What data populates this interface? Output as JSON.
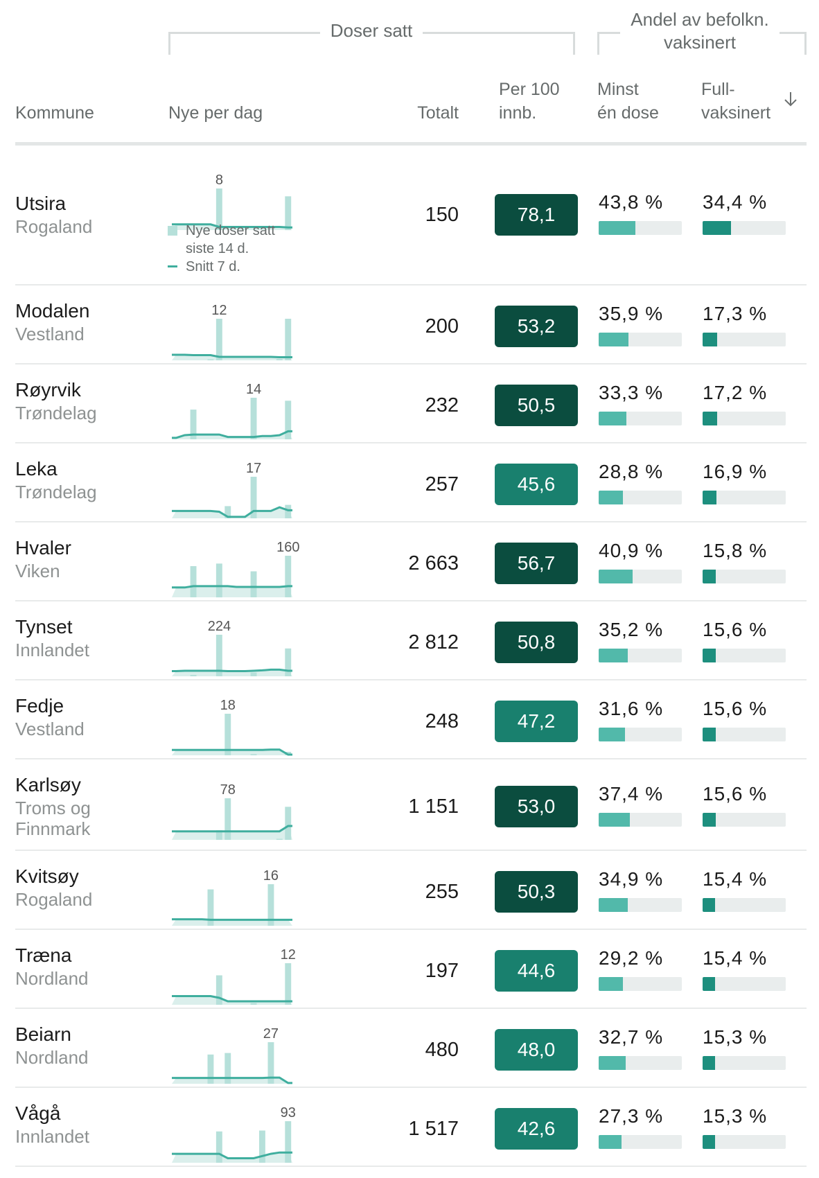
{
  "header": {
    "group_doser": "Doser satt",
    "group_andel_line1": "Andel av befolkn.",
    "group_andel_line2": "vaksinert",
    "col_kommune": "Kommune",
    "col_nye": "Nye per dag",
    "col_totalt": "Totalt",
    "col_per100_line1": "Per 100",
    "col_per100_line2": "innb.",
    "col_minst_line1": "Minst",
    "col_minst_line2": "én dose",
    "col_full_line1": "Full-",
    "col_full_line2": "vaksinert",
    "sort_icon": "arrow-down-icon"
  },
  "legend": {
    "bars_line1": "Nye doser satt",
    "bars_line2": "siste 14 d.",
    "line": "Snitt 7 d."
  },
  "colors": {
    "badge_dark": "#0b4d3f",
    "badge_mid": "#19806e",
    "bar_light": "#b6e0da",
    "line": "#3fae9e",
    "minst_fill": "#52b9aa",
    "full_fill": "#1d8f7e"
  },
  "rows": [
    {
      "kommune": "Utsira",
      "fylke": [
        "Rogaland"
      ],
      "total": "150",
      "per100": "78,1",
      "per100_shade": "dark",
      "minst": "43,8 %",
      "minst_val": 43.8,
      "full": "34,4 %",
      "full_val": 34.4,
      "peak_label": "8",
      "bars": [
        0,
        0,
        0,
        0,
        0,
        8,
        0,
        0,
        0,
        0,
        0,
        0,
        0,
        6.5
      ],
      "avg": [
        1.1,
        1.1,
        1.1,
        1.1,
        1.1,
        0.6,
        0.6,
        0.6,
        0.6,
        0.6,
        0.6,
        0.6,
        0.6,
        0.5
      ]
    },
    {
      "kommune": "Modalen",
      "fylke": [
        "Vestland"
      ],
      "total": "200",
      "per100": "53,2",
      "per100_shade": "dark",
      "minst": "35,9 %",
      "minst_val": 35.9,
      "full": "17,3 %",
      "full_val": 17.3,
      "peak_label": "12",
      "bars": [
        0,
        0,
        0,
        0,
        0.3,
        12,
        0,
        0,
        0,
        0,
        0,
        0,
        0.4,
        12
      ],
      "avg": [
        1.6,
        1.6,
        1.5,
        1.5,
        1.5,
        1.0,
        1.0,
        1.0,
        1.0,
        1.0,
        1.0,
        1.0,
        0.9,
        0.9
      ]
    },
    {
      "kommune": "Røyrvik",
      "fylke": [
        "Trøndelag"
      ],
      "total": "232",
      "per100": "50,5",
      "per100_shade": "dark",
      "minst": "33,3 %",
      "minst_val": 33.3,
      "full": "17,2 %",
      "full_val": 17.2,
      "peak_label": "14",
      "bars": [
        0,
        0,
        10,
        0,
        0,
        0,
        0,
        0,
        0,
        14,
        0,
        0,
        0,
        13
      ],
      "avg": [
        0.5,
        1.4,
        1.6,
        1.6,
        1.6,
        1.6,
        0.8,
        0.8,
        0.8,
        0.8,
        1.1,
        1.1,
        1.4,
        2.7
      ]
    },
    {
      "kommune": "Leka",
      "fylke": [
        "Trøndelag"
      ],
      "total": "257",
      "per100": "45,6",
      "per100_shade": "mid",
      "minst": "28,8 %",
      "minst_val": 28.8,
      "full": "16,9 %",
      "full_val": 16.9,
      "peak_label": "17",
      "bars": [
        0,
        0,
        0,
        0,
        0,
        0,
        5,
        0,
        0,
        17,
        0,
        0,
        0,
        5.5
      ],
      "avg": [
        3.0,
        3.0,
        3.0,
        3.0,
        3.0,
        2.7,
        0.6,
        0.6,
        0.6,
        3.0,
        3.0,
        3.0,
        4.5,
        3.3
      ]
    },
    {
      "kommune": "Hvaler",
      "fylke": [
        "Viken"
      ],
      "total": "2 663",
      "per100": "56,7",
      "per100_shade": "dark",
      "minst": "40,9 %",
      "minst_val": 40.9,
      "full": "15,8 %",
      "full_val": 15.8,
      "peak_label": "160",
      "bars": [
        0,
        0,
        120,
        0,
        0,
        130,
        0,
        0,
        0,
        100,
        0,
        0,
        0,
        160
      ],
      "avg": [
        38,
        38,
        43,
        43,
        43,
        43,
        43,
        40,
        40,
        40,
        40,
        40,
        40,
        43
      ]
    },
    {
      "kommune": "Tynset",
      "fylke": [
        "Innlandet"
      ],
      "total": "2 812",
      "per100": "50,8",
      "per100_shade": "dark",
      "minst": "35,2 %",
      "minst_val": 35.2,
      "full": "15,6 %",
      "full_val": 15.6,
      "peak_label": "224",
      "bars": [
        0,
        0,
        8,
        0,
        0,
        224,
        0,
        0,
        0,
        20,
        0,
        0,
        0,
        150
      ],
      "avg": [
        28,
        30,
        30,
        30,
        30,
        30,
        28,
        28,
        28,
        30,
        32,
        36,
        36,
        30
      ]
    },
    {
      "kommune": "Fedje",
      "fylke": [
        "Vestland"
      ],
      "total": "248",
      "per100": "47,2",
      "per100_shade": "mid",
      "minst": "31,6 %",
      "minst_val": 31.6,
      "full": "15,6 %",
      "full_val": 15.6,
      "peak_label": "18",
      "bars": [
        0,
        0,
        0,
        0,
        0,
        0,
        18,
        0,
        0,
        0.5,
        0,
        0,
        0,
        1.5
      ],
      "avg": [
        2.3,
        2.3,
        2.3,
        2.3,
        2.3,
        2.3,
        2.3,
        2.3,
        2.3,
        2.3,
        2.3,
        2.5,
        2.5,
        0.3
      ]
    },
    {
      "kommune": "Karlsøy",
      "fylke": [
        "Troms og",
        "Finnmark"
      ],
      "total": "1 151",
      "per100": "53,0",
      "per100_shade": "dark",
      "minst": "37,4 %",
      "minst_val": 37.4,
      "full": "15,6 %",
      "full_val": 15.6,
      "peak_label": "78",
      "bars": [
        0,
        0,
        0,
        0,
        0,
        18,
        78,
        0,
        0,
        0,
        0,
        0,
        2,
        62
      ],
      "avg": [
        16,
        16,
        16,
        16,
        16,
        16,
        16,
        16,
        16,
        16,
        16,
        16,
        16,
        26
      ]
    },
    {
      "kommune": "Kvitsøy",
      "fylke": [
        "Rogaland"
      ],
      "total": "255",
      "per100": "50,3",
      "per100_shade": "dark",
      "minst": "34,9 %",
      "minst_val": 34.9,
      "full": "15,4 %",
      "full_val": 15.4,
      "peak_label": "16",
      "bars": [
        0,
        0,
        0,
        0,
        14,
        0,
        0,
        0,
        0,
        0,
        0,
        16,
        0,
        0
      ],
      "avg": [
        2.5,
        2.5,
        2.5,
        2.5,
        2.3,
        2.3,
        2.3,
        2.3,
        2.3,
        2.3,
        2.3,
        2.3,
        2.3,
        2.3
      ]
    },
    {
      "kommune": "Træna",
      "fylke": [
        "Nordland"
      ],
      "total": "197",
      "per100": "44,6",
      "per100_shade": "mid",
      "minst": "29,2 %",
      "minst_val": 29.2,
      "full": "15,4 %",
      "full_val": 15.4,
      "peak_label": "12",
      "bars": [
        0,
        0,
        0,
        0,
        0,
        8.5,
        0,
        0,
        0,
        0.5,
        0,
        0,
        0,
        12
      ],
      "avg": [
        2.5,
        2.5,
        2.5,
        2.5,
        2.5,
        2.0,
        1.0,
        1.0,
        1.0,
        1.0,
        1.0,
        1.0,
        1.0,
        1.0
      ]
    },
    {
      "kommune": "Beiarn",
      "fylke": [
        "Nordland"
      ],
      "total": "480",
      "per100": "48,0",
      "per100_shade": "mid",
      "minst": "32,7 %",
      "minst_val": 32.7,
      "full": "15,3 %",
      "full_val": 15.3,
      "peak_label": "27",
      "bars": [
        0,
        0,
        0,
        0,
        19,
        0,
        20,
        0,
        0,
        0,
        0,
        27,
        0,
        0
      ],
      "avg": [
        3.8,
        3.8,
        3.8,
        3.8,
        3.8,
        3.8,
        3.8,
        3.8,
        3.8,
        3.8,
        3.8,
        4.0,
        4.0,
        0.5
      ]
    },
    {
      "kommune": "Vågå",
      "fylke": [
        "Innlandet"
      ],
      "total": "1 517",
      "per100": "42,6",
      "per100_shade": "mid",
      "minst": "27,3 %",
      "minst_val": 27.3,
      "full": "15,3 %",
      "full_val": 15.3,
      "peak_label": "93",
      "bars": [
        0,
        0,
        0,
        0,
        0,
        70,
        0,
        0,
        0,
        0,
        72,
        0,
        0,
        93
      ],
      "avg": [
        20,
        20,
        20,
        20,
        20,
        20,
        10,
        10,
        10,
        10,
        15,
        20,
        23,
        23
      ]
    }
  ]
}
